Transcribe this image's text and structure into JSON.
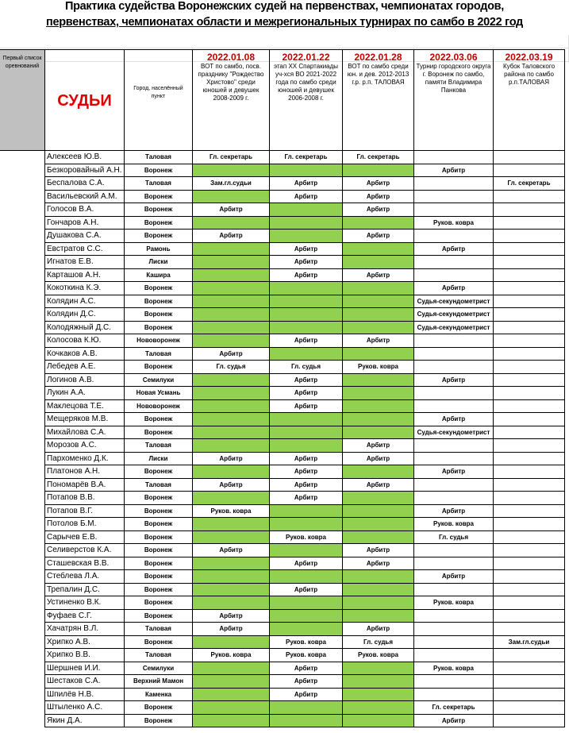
{
  "title": [
    "Практика судейства Воронежских судей на первенствах, чемпионатах городов,",
    "первенствах, чемпионатах области и межрегиональных турнирах по самбо в 2022 год"
  ],
  "header": {
    "list_label": "Первый список оревнований",
    "judges_label": "СУДЬИ",
    "city_label": "Город, населённый пункт",
    "events": [
      {
        "date": "2022.01.08",
        "name": "ВОТ по самбо, посв. празднику \"Рождество Христово\" среди юношей и девушек 2008-2009 г."
      },
      {
        "date": "2022.01.22",
        "name": "этап XX Спартакиады уч-хся ВО 2021-2022 года по самбо среди юношей и девушек 2006-2008 г."
      },
      {
        "date": "2022.01.28",
        "name": "ВОТ по самбо среди юн. и дев. 2012-2013 г.р. р.п. ТАЛОВАЯ"
      },
      {
        "date": "2022.03.06",
        "name": "Турнир городского округа г. Воронеж по самбо, памяти Владимира Панкова"
      },
      {
        "date": "2022.03.19",
        "name": "Кубок Таловского района по самбо р.п.ТАЛОВАЯ"
      }
    ]
  },
  "rows": [
    [
      "Алексеев Ю.В.",
      "Таловая",
      "Гл. секретарь",
      "Гл. секретарь",
      "Гл. секретарь",
      null,
      null
    ],
    [
      "Безкоровайный А.Н.",
      "Воронеж",
      null,
      null,
      null,
      "Арбитр",
      null
    ],
    [
      "Беспалова С.А.",
      "Таловая",
      "Зам.гл.судьи",
      "Арбитр",
      "Арбитр",
      null,
      "Гл. секретарь"
    ],
    [
      "Васильевский А.М.",
      "Воронеж",
      null,
      "Арбитр",
      "Арбитр",
      null,
      null
    ],
    [
      "Голосов В.А.",
      "Воронеж",
      "Арбитр",
      null,
      "Арбитр",
      null,
      null
    ],
    [
      "Гончаров А.Н.",
      "Воронеж",
      null,
      null,
      null,
      "Руков. ковра",
      null
    ],
    [
      "Душакова С.А.",
      "Воронеж",
      "Арбитр",
      null,
      "Арбитр",
      null,
      null
    ],
    [
      "Евстратов С.С.",
      "Рамонь",
      null,
      "Арбитр",
      null,
      "Арбитр",
      null
    ],
    [
      "Игнатов Е.В.",
      "Лиски",
      null,
      "Арбитр",
      null,
      null,
      null
    ],
    [
      "Карташов А.Н.",
      "Кашира",
      null,
      "Арбитр",
      "Арбитр",
      null,
      null
    ],
    [
      "Кокоткина К.Э.",
      "Воронеж",
      null,
      null,
      null,
      "Арбитр",
      null
    ],
    [
      "Колядин А.С.",
      "Воронеж",
      null,
      null,
      null,
      "Судья-секундометрист",
      null
    ],
    [
      "Колядин Д.С.",
      "Воронеж",
      null,
      null,
      null,
      "Судья-секундометрист",
      null
    ],
    [
      "Колодяжный Д.С.",
      "Воронеж",
      null,
      null,
      null,
      "Судья-секундометрист",
      null
    ],
    [
      "Колосова К.Ю.",
      "Нововоронеж",
      null,
      "Арбитр",
      "Арбитр",
      null,
      null
    ],
    [
      "Кочкаков А.В.",
      "Таловая",
      "Арбитр",
      null,
      null,
      null,
      null
    ],
    [
      "Лебедев А.Е.",
      "Воронеж",
      "Гл. судья",
      "Гл. судья",
      "Руков. ковра",
      null,
      null
    ],
    [
      "Логинов А.В.",
      "Семилуки",
      null,
      "Арбитр",
      null,
      "Арбитр",
      null
    ],
    [
      "Лукин А.А.",
      "Новая Усмань",
      null,
      "Арбитр",
      null,
      null,
      null
    ],
    [
      "Маклецова Т.Е.",
      "Нововоронеж",
      null,
      "Арбитр",
      null,
      null,
      null
    ],
    [
      "Мещеряков М.В.",
      "Воронеж",
      null,
      null,
      null,
      "Арбитр",
      null
    ],
    [
      "Михайлова С.А.",
      "Воронеж",
      null,
      null,
      null,
      "Судья-секундометрист",
      null
    ],
    [
      "Морозов А.С.",
      "Таловая",
      null,
      null,
      "Арбитр",
      null,
      null
    ],
    [
      "Пархоменко Д.К.",
      "Лиски",
      "Арбитр",
      "Арбитр",
      "Арбитр",
      null,
      null
    ],
    [
      "Платонов А.Н.",
      "Воронеж",
      null,
      "Арбитр",
      null,
      "Арбитр",
      null
    ],
    [
      "Пономарёв В.А.",
      "Таловая",
      "Арбитр",
      "Арбитр",
      "Арбитр",
      null,
      null
    ],
    [
      "Потапов В.В.",
      "Воронеж",
      null,
      "Арбитр",
      null,
      null,
      null
    ],
    [
      "Потапов В.Г.",
      "Воронеж",
      "Руков. ковра",
      null,
      null,
      "Арбитр",
      null
    ],
    [
      "Потолов Б.М.",
      "Воронеж",
      null,
      null,
      null,
      "Руков. ковра",
      null
    ],
    [
      "Сарычев Е.В.",
      "Воронеж",
      null,
      "Руков. ковра",
      null,
      "Гл. судья",
      null
    ],
    [
      "Селиверстов К.А.",
      "Воронеж",
      "Арбитр",
      null,
      "Арбитр",
      null,
      null
    ],
    [
      "Сташевская В.В.",
      "Воронеж",
      null,
      "Арбитр",
      "Арбитр",
      null,
      null
    ],
    [
      "Стеблева Л.А.",
      "Воронеж",
      null,
      null,
      null,
      "Арбитр",
      null
    ],
    [
      "Трепалин Д.С.",
      "Воронеж",
      null,
      "Арбитр",
      null,
      null,
      null
    ],
    [
      "Устиненко В.К.",
      "Воронеж",
      null,
      null,
      null,
      "Руков. ковра",
      null
    ],
    [
      "Фуфаев С.Г.",
      "Воронеж",
      "Арбитр",
      null,
      null,
      null,
      null
    ],
    [
      "Хачатрян В.Л.",
      "Таловая",
      "Арбитр",
      null,
      "Арбитр",
      null,
      null
    ],
    [
      "Хрипко А.В.",
      "Воронеж",
      null,
      "Руков. ковра",
      "Гл. судья",
      null,
      "Зам.гл.судьи"
    ],
    [
      "Хрипко В.В.",
      "Таловая",
      "Руков. ковра",
      "Руков. ковра",
      "Руков. ковра",
      null,
      null
    ],
    [
      "Шершнев И.И.",
      "Семилуки",
      null,
      "Арбитр",
      null,
      "Руков. ковра",
      null
    ],
    [
      "Шестаков С.А.",
      "Верхний Мамон",
      null,
      "Арбитр",
      null,
      null,
      null
    ],
    [
      "Шпилёв Н.В.",
      "Каменка",
      null,
      "Арбитр",
      null,
      null,
      null
    ],
    [
      "Штыленко А.С.",
      "Воронеж",
      null,
      null,
      null,
      "Гл. секретарь",
      null
    ],
    [
      "Якин Д.А.",
      "Воронеж",
      null,
      null,
      null,
      "Арбитр",
      null
    ]
  ]
}
